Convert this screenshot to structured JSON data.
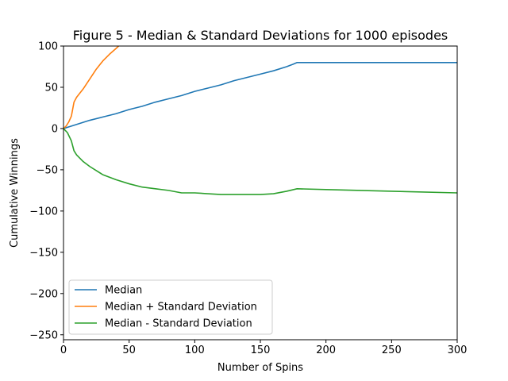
{
  "chart_data": {
    "type": "line",
    "title": "Figure 5 - Median & Standard Deviations for 1000 episodes",
    "xlabel": "Number of Spins",
    "ylabel": "Cumulative Winnings",
    "xlim": [
      0,
      300
    ],
    "ylim": [
      -256,
      100
    ],
    "xticks": [
      0,
      50,
      100,
      150,
      200,
      250,
      300
    ],
    "yticks": [
      100,
      50,
      0,
      -50,
      -100,
      -150,
      -200,
      -250
    ],
    "xtick_labels": [
      "0",
      "50",
      "100",
      "150",
      "200",
      "250",
      "300"
    ],
    "ytick_labels": [
      "100",
      "50",
      "0",
      "−50",
      "−100",
      "−150",
      "−200",
      "−250"
    ],
    "grid": false,
    "legend_position": "lower-left",
    "series": [
      {
        "name": "Median",
        "color": "#1f77b4",
        "x": [
          0,
          10,
          20,
          30,
          40,
          50,
          60,
          70,
          80,
          90,
          100,
          110,
          120,
          130,
          140,
          150,
          160,
          170,
          175,
          178,
          200,
          250,
          300
        ],
        "y": [
          0,
          5,
          10,
          14,
          18,
          23,
          27,
          32,
          36,
          40,
          45,
          49,
          53,
          58,
          62,
          66,
          70,
          75,
          78,
          80,
          80,
          80,
          80
        ]
      },
      {
        "name": "Median + Standard Deviation",
        "color": "#ff7f0e",
        "x": [
          0,
          2,
          4,
          6,
          8,
          10,
          15,
          20,
          25,
          30,
          35,
          40,
          42
        ],
        "y": [
          0,
          3,
          8,
          15,
          32,
          38,
          48,
          60,
          72,
          82,
          90,
          97,
          100
        ]
      },
      {
        "name": "Median - Standard Deviation",
        "color": "#2ca02c",
        "x": [
          0,
          3,
          6,
          8,
          10,
          15,
          20,
          25,
          30,
          40,
          50,
          60,
          70,
          80,
          90,
          100,
          110,
          120,
          130,
          140,
          150,
          160,
          170,
          178,
          200,
          250,
          300
        ],
        "y": [
          0,
          -5,
          -15,
          -27,
          -32,
          -40,
          -46,
          -51,
          -56,
          -62,
          -67,
          -71,
          -73,
          -75,
          -78,
          -78,
          -79,
          -80,
          -80,
          -80,
          -80,
          -79,
          -76,
          -73,
          -74,
          -76,
          -78
        ]
      }
    ]
  }
}
